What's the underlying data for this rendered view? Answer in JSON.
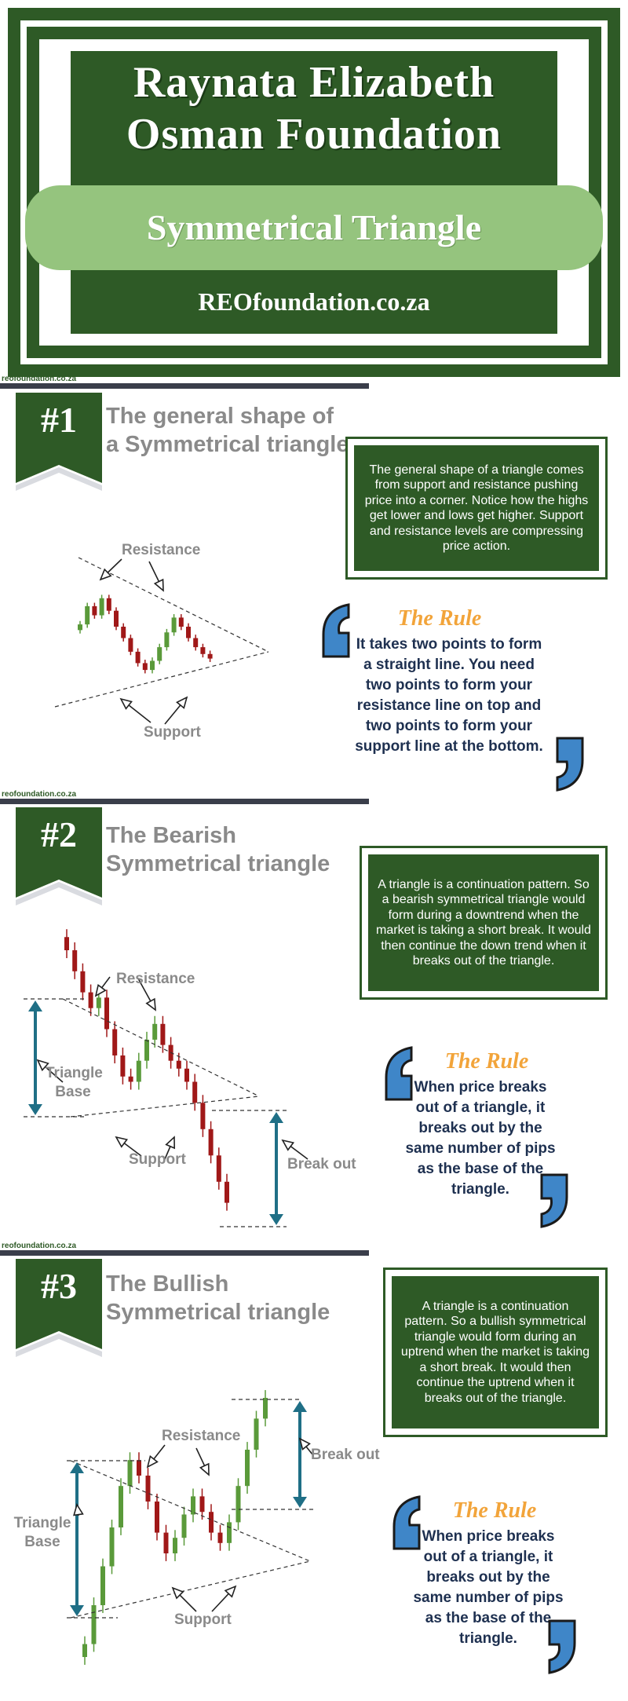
{
  "header": {
    "title_line1": "Raynata Elizabeth",
    "title_line2": "Osman Foundation",
    "subtitle": "Symmetrical Triangle",
    "url": "REOfoundation.co.za"
  },
  "site_tag": "reofoundation.co.za",
  "colors": {
    "dark_green": "#2e5a26",
    "light_green": "#95c47e",
    "bull": "#5a9a3a",
    "bear": "#a01818",
    "teal": "#1f6f86",
    "rule_orange": "#f2a43a",
    "rule_text": "#1e3050",
    "quote_blue": "#3f86c8"
  },
  "sections": [
    {
      "number": "#1",
      "heading_line1": "The general shape of",
      "heading_line2": "a Symmetrical triangle",
      "description": "The general shape of a triangle comes from support and resistance pushing price into a corner. Notice how the highs get lower and lows get higher. Support and resistance levels are compressing price action.",
      "rule_title": "The Rule",
      "rule_text": "It takes two points to form a straight line. You need two points to form your resistance line on top and two points to form your support line at the bottom.",
      "labels": {
        "resistance": "Resistance",
        "support": "Support"
      }
    },
    {
      "number": "#2",
      "heading_line1": "The Bearish",
      "heading_line2": "Symmetrical triangle",
      "description": "A triangle is a continuation pattern. So a bearish symmetrical triangle would form during a downtrend when the market is taking a short break. It would then continue the down trend when it breaks out of the triangle.",
      "rule_title": "The Rule",
      "rule_text": "When price breaks out of a triangle, it breaks out by the same number of pips as the base of the triangle.",
      "labels": {
        "resistance": "Resistance",
        "support": "Support",
        "base": "Triangle Base",
        "breakout": "Break out"
      }
    },
    {
      "number": "#3",
      "heading_line1": "The Bullish",
      "heading_line2": "Symmetrical triangle",
      "description": "A triangle is a continuation pattern. So a bullish symmetrical triangle would form during an uptrend when the market is taking a short break. It would then continue the uptrend when it breaks out of the triangle.",
      "rule_title": "The Rule",
      "rule_text": "When price breaks out of a triangle, it breaks out by the same number of pips as the base of the triangle.",
      "labels": {
        "resistance": "Resistance",
        "support": "Support",
        "base": "Triangle Base",
        "breakout": "Break out"
      }
    }
  ],
  "chart_data": [
    {
      "type": "candlestick",
      "pattern": "symmetrical triangle",
      "trend": "neutral",
      "candles": [
        0.62,
        0.78,
        0.7,
        0.85,
        0.74,
        0.6,
        0.5,
        0.38,
        0.28,
        0.22,
        0.3,
        0.42,
        0.55,
        0.68,
        0.6,
        0.5,
        0.42,
        0.36,
        0.32
      ],
      "resistance_line": "descending",
      "support_line": "ascending"
    },
    {
      "type": "candlestick",
      "pattern": "bearish symmetrical triangle",
      "trend": "down",
      "candles": [
        1.0,
        0.92,
        0.84,
        0.78,
        0.82,
        0.7,
        0.6,
        0.52,
        0.5,
        0.58,
        0.66,
        0.72,
        0.64,
        0.58,
        0.55,
        0.5,
        0.42,
        0.32,
        0.22,
        0.12,
        0.04
      ],
      "resistance_line": "descending",
      "support_line": "ascending",
      "breakout": "down"
    },
    {
      "type": "candlestick",
      "pattern": "bullish symmetrical triangle",
      "trend": "up",
      "candles": [
        0.05,
        0.2,
        0.35,
        0.5,
        0.66,
        0.76,
        0.7,
        0.6,
        0.48,
        0.4,
        0.46,
        0.55,
        0.62,
        0.56,
        0.48,
        0.44,
        0.52,
        0.66,
        0.8,
        0.92,
        1.0
      ],
      "resistance_line": "descending",
      "support_line": "ascending",
      "breakout": "up"
    }
  ]
}
